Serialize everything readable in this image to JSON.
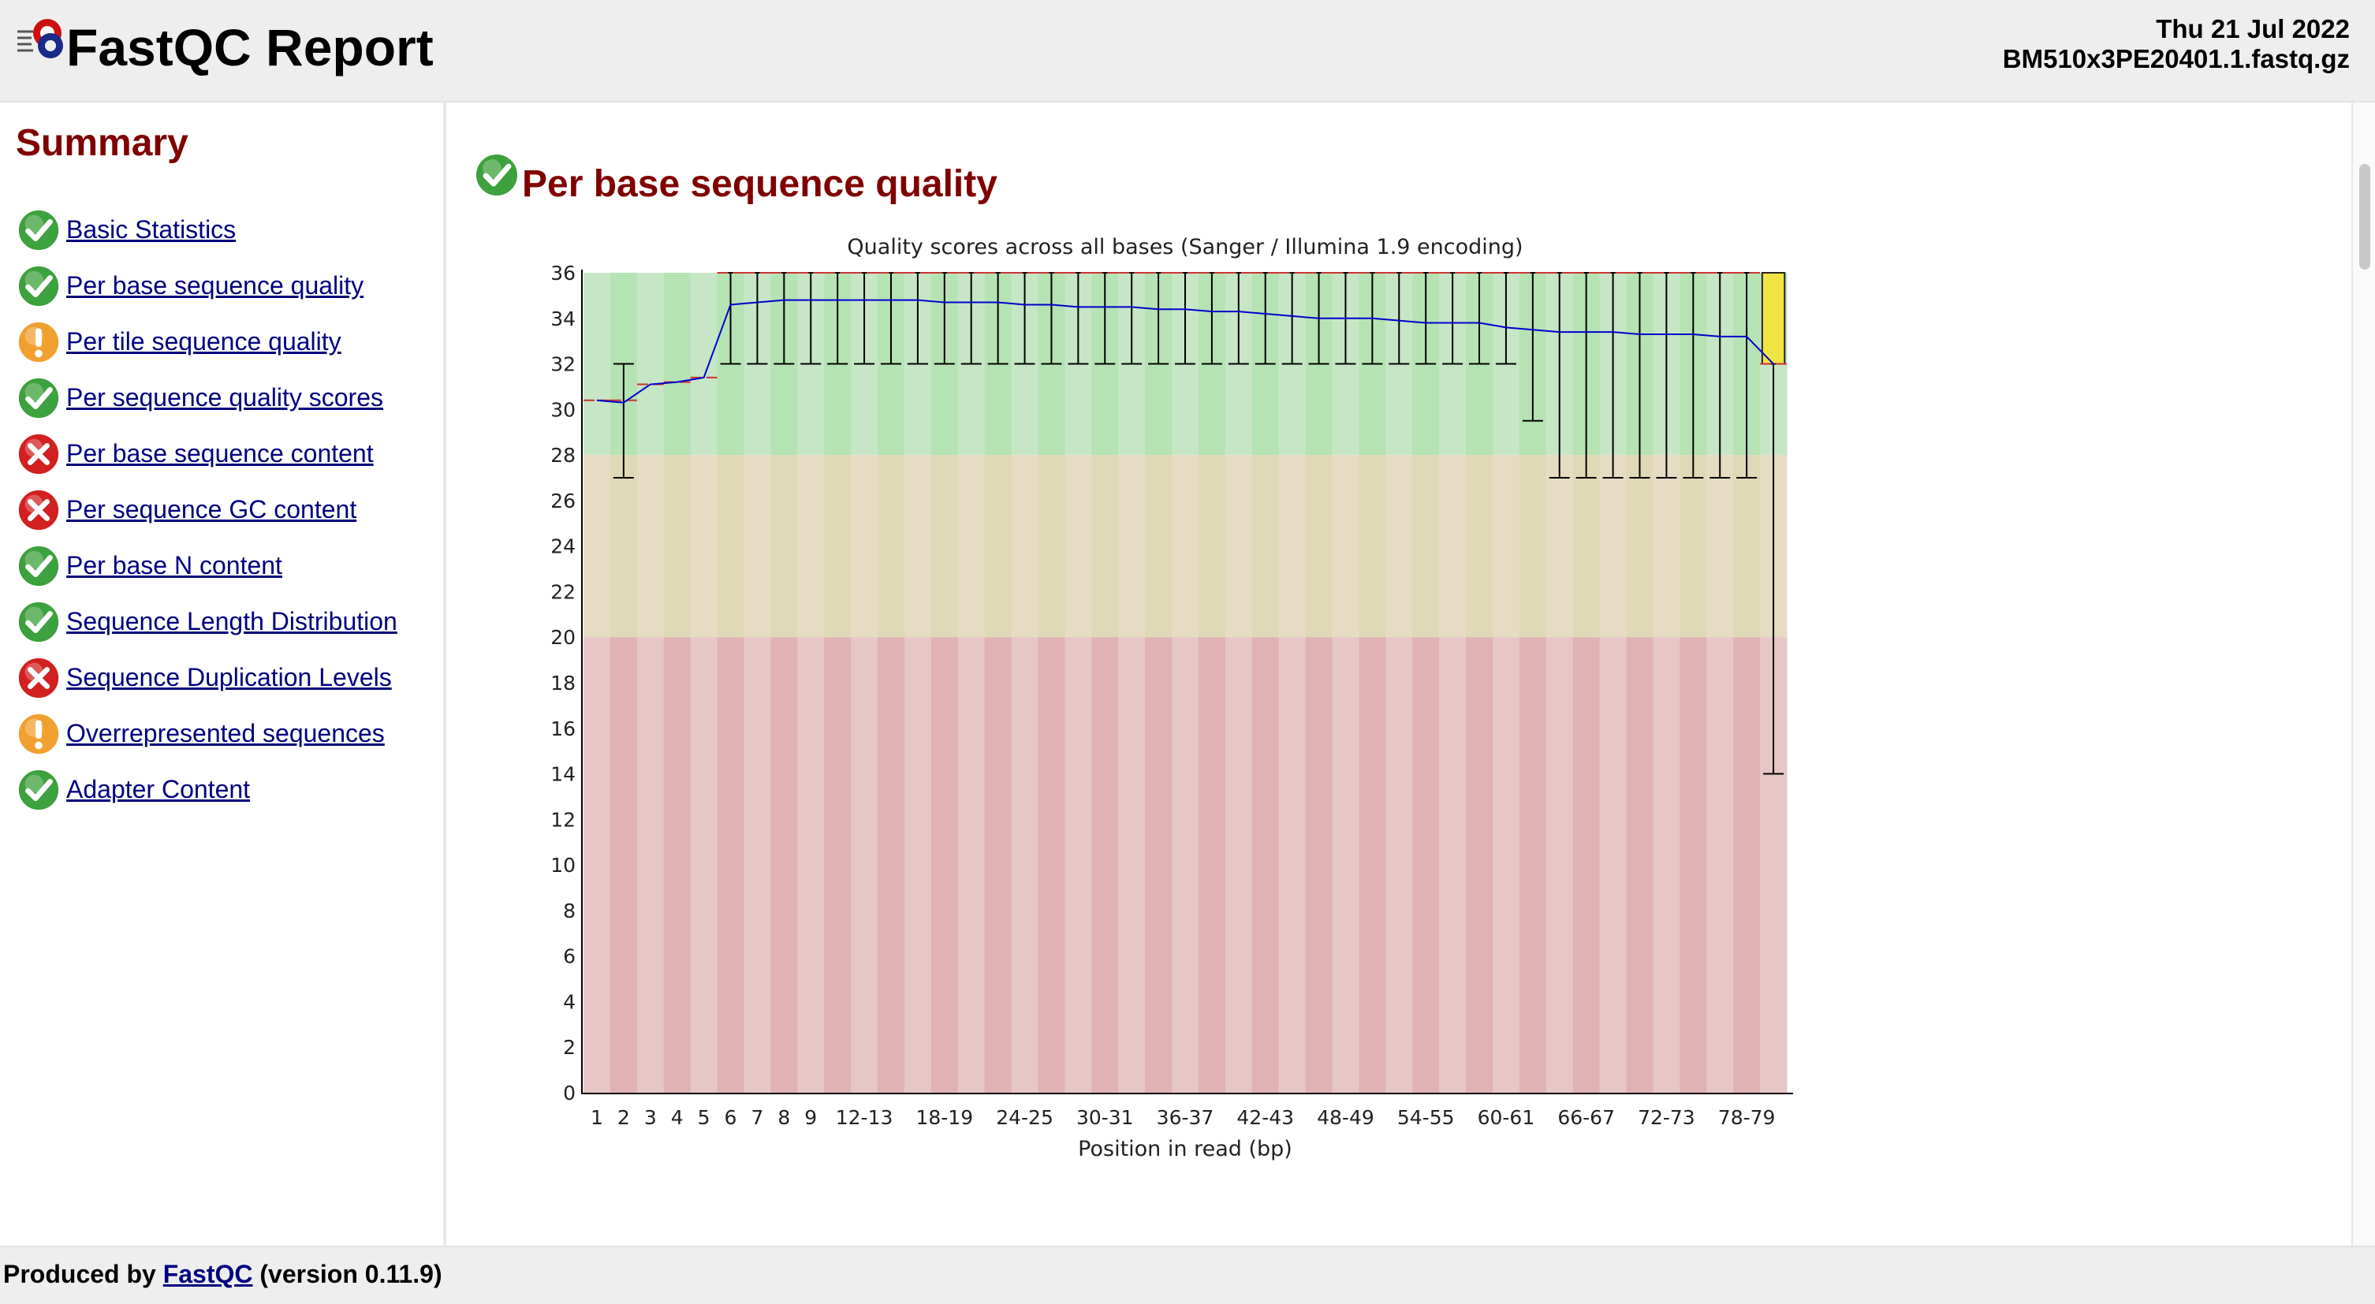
{
  "header": {
    "title": "FastQC Report",
    "date": "Thu 21 Jul 2022",
    "filename": "BM510x3PE20401.1.fastq.gz",
    "logo_icon": "fastqc-logo-icon"
  },
  "sidebar": {
    "title": "Summary",
    "items": [
      {
        "label": "Basic Statistics",
        "status": "pass"
      },
      {
        "label": "Per base sequence quality",
        "status": "pass"
      },
      {
        "label": "Per tile sequence quality",
        "status": "warn"
      },
      {
        "label": "Per sequence quality scores",
        "status": "pass"
      },
      {
        "label": "Per base sequence content",
        "status": "fail"
      },
      {
        "label": "Per sequence GC content",
        "status": "fail"
      },
      {
        "label": "Per base N content",
        "status": "pass"
      },
      {
        "label": "Sequence Length Distribution",
        "status": "pass"
      },
      {
        "label": "Sequence Duplication Levels",
        "status": "fail"
      },
      {
        "label": "Overrepresented sequences",
        "status": "warn"
      },
      {
        "label": "Adapter Content",
        "status": "pass"
      }
    ]
  },
  "main": {
    "module_title": "Per base sequence quality",
    "module_status": "pass"
  },
  "chart_data": {
    "type": "box",
    "title": "Quality scores across all bases (Sanger / Illumina 1.9 encoding)",
    "xlabel": "Position in read (bp)",
    "ylabel": "",
    "ylim": [
      0,
      36
    ],
    "yticks": [
      0,
      2,
      4,
      6,
      8,
      10,
      12,
      14,
      16,
      18,
      20,
      22,
      24,
      26,
      28,
      30,
      32,
      34,
      36
    ],
    "categories": [
      "1",
      "2",
      "3",
      "4",
      "5",
      "6",
      "7",
      "8",
      "9",
      "10-11",
      "12-13",
      "14-15",
      "16-17",
      "18-19",
      "20-21",
      "22-23",
      "24-25",
      "26-27",
      "28-29",
      "30-31",
      "32-33",
      "34-35",
      "36-37",
      "38-39",
      "40-41",
      "42-43",
      "44-45",
      "46-47",
      "48-49",
      "50-51",
      "52-53",
      "54-55",
      "56-57",
      "58-59",
      "60-61",
      "62-63",
      "64-65",
      "66-67",
      "68-69",
      "70-71",
      "72-73",
      "74-75",
      "76-77",
      "78-79",
      "80-81"
    ],
    "labeled_categories": [
      "1",
      "2",
      "3",
      "4",
      "5",
      "6",
      "7",
      "8",
      "9",
      "12-13",
      "18-19",
      "24-25",
      "30-31",
      "36-37",
      "42-43",
      "48-49",
      "54-55",
      "60-61",
      "66-67",
      "72-73",
      "78-79"
    ],
    "mean": [
      30.4,
      30.3,
      31.1,
      31.2,
      31.4,
      34.6,
      34.7,
      34.8,
      34.8,
      34.8,
      34.8,
      34.8,
      34.8,
      34.7,
      34.7,
      34.7,
      34.6,
      34.6,
      34.5,
      34.5,
      34.5,
      34.4,
      34.4,
      34.3,
      34.3,
      34.2,
      34.1,
      34.0,
      34.0,
      34.0,
      33.9,
      33.8,
      33.8,
      33.8,
      33.6,
      33.5,
      33.4,
      33.4,
      33.4,
      33.3,
      33.3,
      33.3,
      33.2,
      33.2,
      32.0
    ],
    "whisker_low": [
      30.4,
      27.0,
      31.1,
      31.2,
      31.4,
      32,
      32,
      32,
      32,
      32,
      32,
      32,
      32,
      32,
      32,
      32,
      32,
      32,
      32,
      32,
      32,
      32,
      32,
      32,
      32,
      32,
      32,
      32,
      32,
      32,
      32,
      32,
      32,
      32,
      32,
      29.5,
      27.0,
      27.0,
      27.0,
      27.0,
      27.0,
      27.0,
      27.0,
      27.0,
      14.0
    ],
    "whisker_high": [
      30.4,
      32.0,
      31.1,
      31.2,
      31.4,
      36,
      36,
      36,
      36,
      36,
      36,
      36,
      36,
      36,
      36,
      36,
      36,
      36,
      36,
      36,
      36,
      36,
      36,
      36,
      36,
      36,
      36,
      36,
      36,
      36,
      36,
      36,
      36,
      36,
      36,
      36,
      36,
      36,
      36,
      36,
      36,
      36,
      36,
      36,
      36
    ],
    "box_low": [
      null,
      null,
      null,
      null,
      null,
      32,
      32,
      32,
      32,
      32,
      32,
      32,
      32,
      32,
      32,
      32,
      32,
      32,
      32,
      32,
      32,
      32,
      32,
      32,
      32,
      32,
      32,
      32,
      32,
      32,
      32,
      32,
      32,
      32,
      32,
      32,
      32,
      32,
      32,
      32,
      32,
      32,
      32,
      32,
      32
    ],
    "box_high": [
      null,
      null,
      null,
      null,
      null,
      36,
      36,
      36,
      36,
      36,
      36,
      36,
      36,
      36,
      36,
      36,
      36,
      36,
      36,
      36,
      36,
      36,
      36,
      36,
      36,
      36,
      36,
      36,
      36,
      36,
      36,
      36,
      36,
      36,
      36,
      36,
      36,
      36,
      36,
      36,
      36,
      36,
      36,
      36,
      36
    ],
    "median": [
      30.4,
      30.4,
      31.1,
      31.2,
      31.4,
      36,
      36,
      36,
      36,
      36,
      36,
      36,
      36,
      36,
      36,
      36,
      36,
      36,
      36,
      36,
      36,
      36,
      36,
      36,
      36,
      36,
      36,
      36,
      36,
      36,
      36,
      36,
      36,
      36,
      36,
      36,
      36,
      36,
      36,
      36,
      36,
      36,
      36,
      36,
      32
    ],
    "zones": [
      {
        "from": 28,
        "to": 36,
        "color_a": "#c6e6c6",
        "color_b": "#b6e3b4"
      },
      {
        "from": 20,
        "to": 28,
        "color_a": "#e6dcc3",
        "color_b": "#e0d9b7"
      },
      {
        "from": 0,
        "to": 20,
        "color_a": "#e6c6c6",
        "color_b": "#e0b2b4"
      }
    ],
    "colors": {
      "mean_line": "#0000cc",
      "whisker": "#000000",
      "median": "#cc3333",
      "box_fill": "#f0e442",
      "box_stroke": "#222222"
    },
    "grid": false
  },
  "footer": {
    "produced_by": "Produced by",
    "link_label": "FastQC",
    "version": "(version 0.11.9)"
  },
  "colors": {
    "pass": "#3da13d",
    "warn": "#f0a030",
    "fail": "#d22020",
    "section_title": "#800000",
    "link": "#000080"
  }
}
